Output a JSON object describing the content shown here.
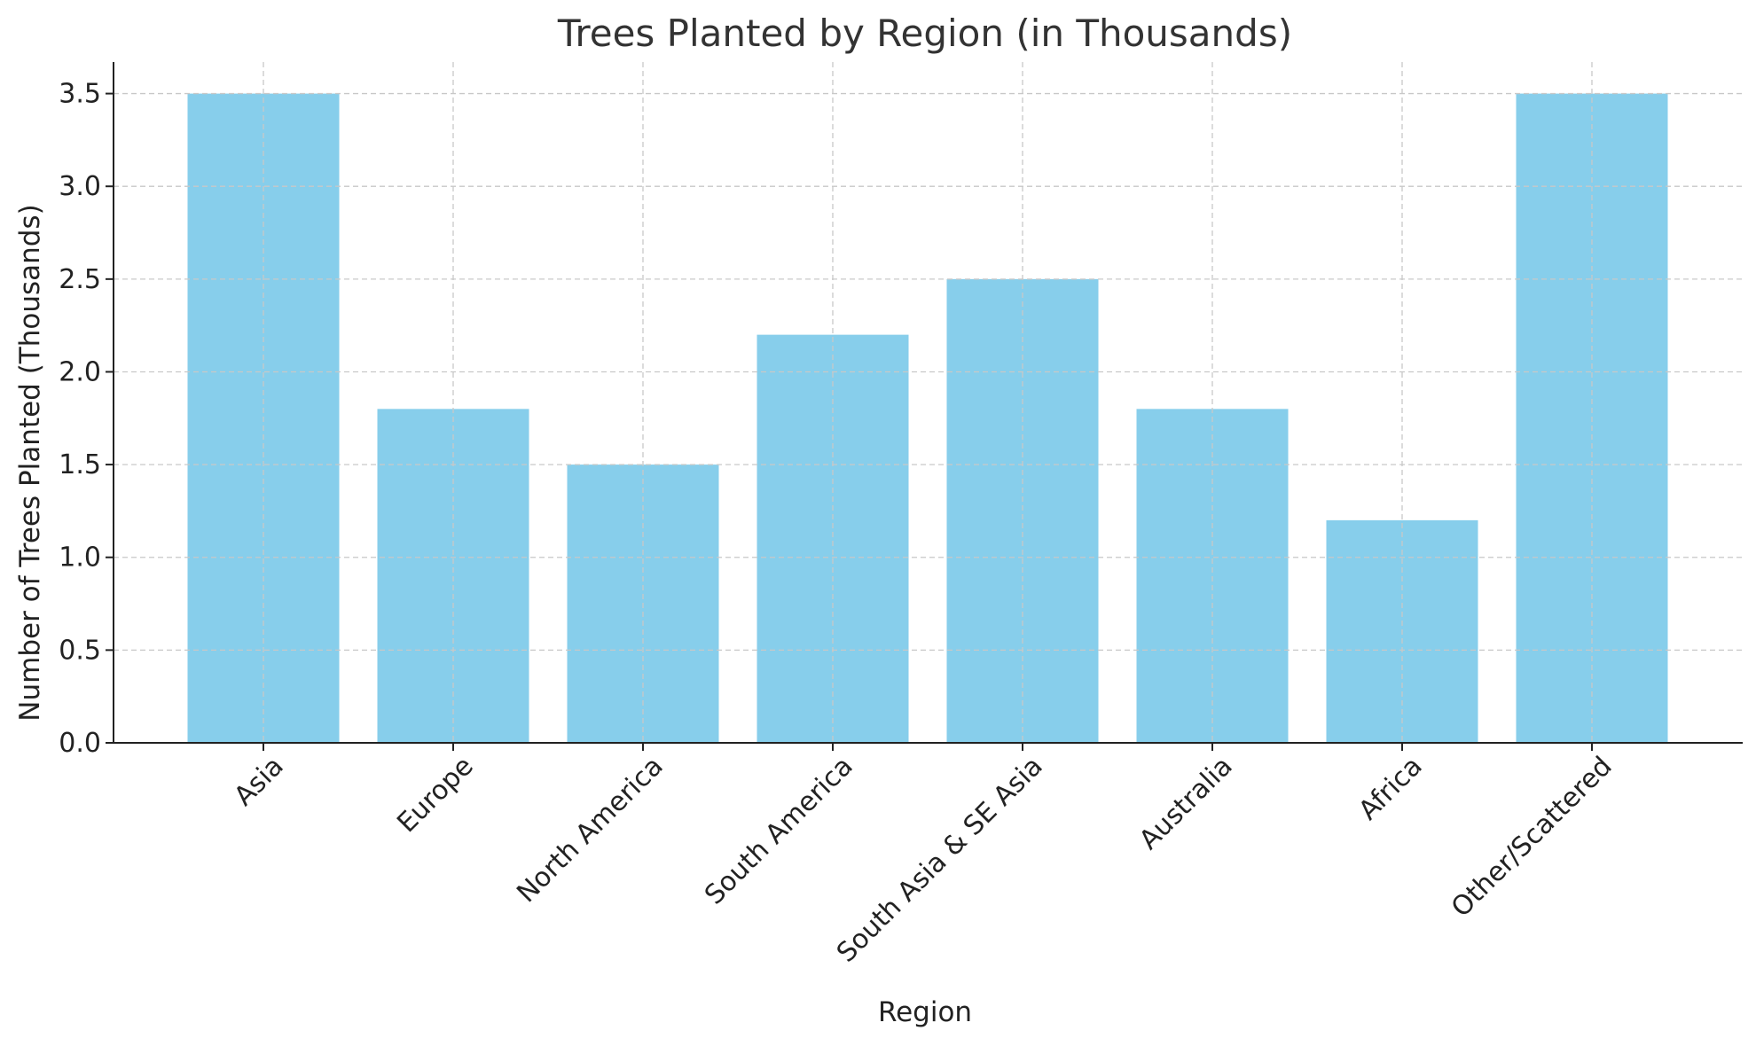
{
  "chart_data": {
    "type": "bar",
    "title": "Trees Planted by Region (in Thousands)",
    "xlabel": "Region",
    "ylabel": "Number of Trees Planted (Thousands)",
    "categories": [
      "Asia",
      "Europe",
      "North America",
      "South America",
      "South Asia & SE Asia",
      "Australia",
      "Africa",
      "Other/Scattered"
    ],
    "values": [
      3.5,
      1.8,
      1.5,
      2.2,
      2.5,
      1.8,
      1.2,
      3.5
    ],
    "ylim": [
      0,
      3.67
    ],
    "yticks": [
      0.0,
      0.5,
      1.0,
      1.5,
      2.0,
      2.5,
      3.0,
      3.5
    ],
    "ytick_labels": [
      "0.0",
      "0.5",
      "1.0",
      "1.5",
      "2.0",
      "2.5",
      "3.0",
      "3.5"
    ],
    "grid": true,
    "bar_color": "#87ceeb",
    "legend": "none"
  }
}
